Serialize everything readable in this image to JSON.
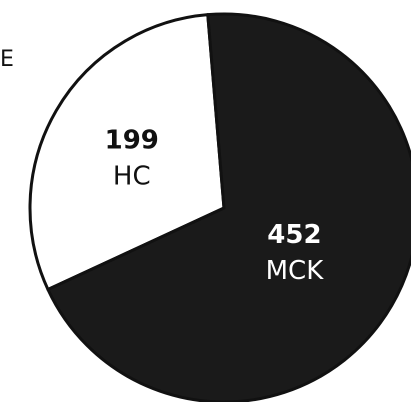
{
  "edge_label": "E",
  "chart_data": {
    "type": "pie",
    "slices": [
      {
        "value": 199,
        "label": "HC",
        "color": "#ffffff",
        "text_color": "#111111"
      },
      {
        "value": 452,
        "label": "MCK",
        "color": "#1a1a1a",
        "text_color": "#ffffff"
      }
    ],
    "stroke_color": "#111111"
  }
}
